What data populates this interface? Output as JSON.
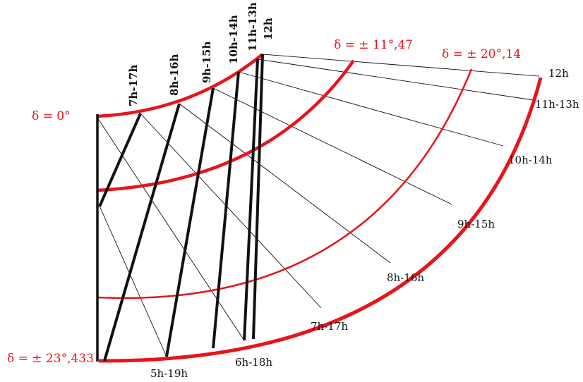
{
  "colors": {
    "declination": "#e8141b",
    "hour": "#111111",
    "background": "#ffffff"
  },
  "declination_labels": [
    "δ = 0°",
    "δ = ± 11°,47",
    "δ = ± 20°,14",
    "δ = ± 23°,433"
  ],
  "top_hour_labels": [
    "7h-17h",
    "8h-16h",
    "9h-15h",
    "10h-14h",
    "11h-13h",
    "12h"
  ],
  "right_hour_labels": [
    "12h",
    "11h-13h",
    "10h-14h",
    "9h-15h",
    "8h-16h",
    "7h-17h",
    "6h-18h",
    "5h-19h"
  ]
}
